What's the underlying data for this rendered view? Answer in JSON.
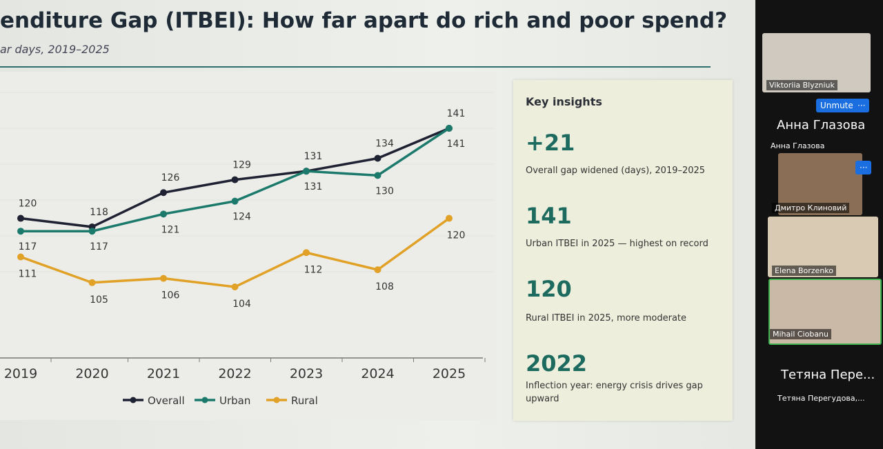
{
  "slide": {
    "title": "enditure Gap (ITBEI): How far apart do rich and poor spend?",
    "subtitle": "ar days, 2019–2025"
  },
  "chart_data": {
    "type": "line",
    "categories": [
      "2019",
      "2020",
      "2021",
      "2022",
      "2023",
      "2024",
      "2025"
    ],
    "series": [
      {
        "name": "Overall",
        "color": "#1f2233",
        "values": [
          120,
          118,
          126,
          129,
          131,
          134,
          141
        ]
      },
      {
        "name": "Urban",
        "color": "#1b7a6b",
        "values": [
          117,
          117,
          121,
          124,
          131,
          130,
          141
        ]
      },
      {
        "name": "Rural",
        "color": "#e0a126",
        "values": [
          111,
          105,
          106,
          104,
          112,
          108,
          120
        ]
      }
    ]
  },
  "insights": {
    "heading": "Key insights",
    "items": [
      {
        "value": "+21",
        "text": "Overall gap widened (days), 2019–2025"
      },
      {
        "value": "141",
        "text": "Urban ITBEI in 2025 — highest on record"
      },
      {
        "value": "120",
        "text": "Rural ITBEI in 2025, more moderate"
      },
      {
        "value": "2022",
        "text": "Inflection year: energy crisis drives gap upward"
      }
    ]
  },
  "participants": {
    "tile1_name": "Viktoriia Blyzniuk",
    "unmute": "Unmute",
    "big_name1": "Анна Глазова",
    "name2": "Анна Глазова",
    "name3": "Дмитро Клиновий",
    "name4": "Elena Borzenko",
    "name5": "Mihail Ciobanu",
    "big_name2": "Тетяна Пере...",
    "name6": "Тетяна Перегудова,..."
  }
}
